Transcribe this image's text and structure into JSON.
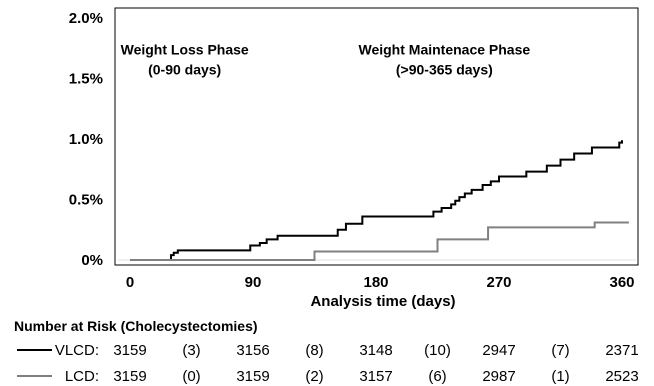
{
  "chart_data": {
    "type": "line",
    "title": "",
    "xlabel": "Analysis time (days)",
    "ylabel": "",
    "xlim": [
      0,
      365
    ],
    "ylim": [
      0,
      2.0
    ],
    "x_ticks": [
      0,
      90,
      180,
      270,
      360
    ],
    "y_ticks": [
      0,
      0.5,
      1.0,
      1.5,
      2.0
    ],
    "y_tick_labels": [
      "0%",
      "0.5%",
      "1.0%",
      "1.5%",
      "2.0%"
    ],
    "grid": false,
    "annotations": [
      {
        "lines": [
          "Weight Loss Phase",
          "(0-90 days)"
        ],
        "x": 40,
        "y": 1.7
      },
      {
        "lines": [
          "Weight Maintenace Phase",
          "(>90-365 days)"
        ],
        "x": 230,
        "y": 1.7
      }
    ],
    "series": [
      {
        "name": "VLCD",
        "color": "#000000",
        "x": [
          0,
          30,
          32,
          35,
          88,
          95,
          100,
          108,
          125,
          152,
          158,
          170,
          222,
          228,
          235,
          238,
          241,
          245,
          250,
          258,
          264,
          270,
          290,
          305,
          315,
          325,
          338,
          358,
          360
        ],
        "y": [
          0,
          0.04,
          0.06,
          0.08,
          0.12,
          0.14,
          0.17,
          0.2,
          0.2,
          0.25,
          0.3,
          0.36,
          0.4,
          0.43,
          0.46,
          0.49,
          0.52,
          0.55,
          0.58,
          0.62,
          0.65,
          0.69,
          0.73,
          0.78,
          0.83,
          0.88,
          0.93,
          0.97,
          0.99
        ]
      },
      {
        "name": "LCD",
        "color": "#808080",
        "x": [
          0,
          135,
          225,
          262,
          340,
          365
        ],
        "y": [
          0,
          0.07,
          0.17,
          0.27,
          0.31,
          0.31
        ]
      }
    ]
  },
  "risk_table": {
    "title": "Number at Risk (Cholecystectomies)",
    "rows": [
      {
        "label": "VLCD:",
        "color": "#000000",
        "cells": [
          "3159",
          "(3)",
          "3156",
          "(8)",
          "3148",
          "(10)",
          "2947",
          "(7)",
          "2371"
        ]
      },
      {
        "label": "LCD:",
        "color": "#808080",
        "cells": [
          "3159",
          "(0)",
          "3159",
          "(2)",
          "3157",
          "(6)",
          "2987",
          "(1)",
          "2523"
        ]
      }
    ]
  }
}
